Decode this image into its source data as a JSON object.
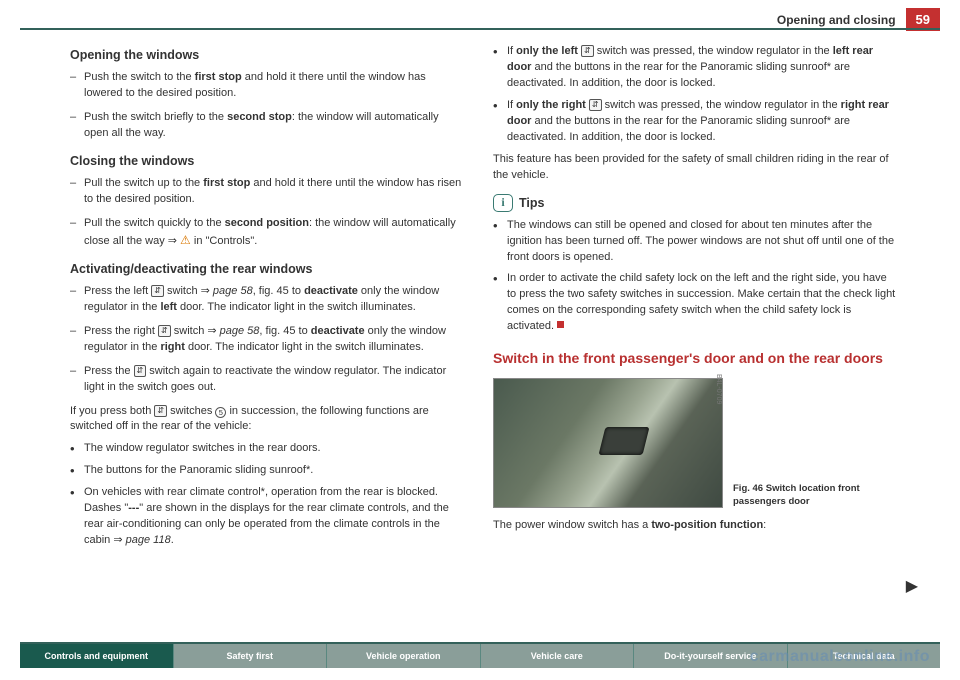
{
  "header": {
    "title": "Opening and closing",
    "pageNum": "59"
  },
  "left": {
    "h1": "Opening the windows",
    "open1": "Push the switch to the <b>first stop</b> and hold it there until the window has lowered to the desired position.",
    "open2": "Push the switch briefly to the <b>second stop</b>: the window will automatically open all the way.",
    "h2": "Closing the windows",
    "close1": "Pull the switch up to the <b>first stop</b> and hold it there until the window has risen to the desired position.",
    "close2": "Pull the switch quickly to the <b>second position</b>: the window will automatically close all the way ⇒ <span class='warn'>⚠</span> in \"Controls\".",
    "h3": "Activating/deactivating the rear windows",
    "act1": "Press the left <span class='inline-icon'>⇵</span> switch ⇒ <i>page 58</i>, fig. 45 to <b>deactivate</b> only the window regulator in the <b>left</b> door. The indicator light in the switch illuminates.",
    "act2": "Press the right <span class='inline-icon'>⇵</span> switch ⇒ <i>page 58</i>, fig. 45 to <b>deactivate</b> only the window regulator in the <b>right</b> door. The indicator light in the switch illuminates.",
    "act3": "Press the <span class='inline-icon'>⇵</span> switch again to reactivate the window regulator. The indicator light in the switch goes out.",
    "note1": "If you press both <span class='inline-icon'>⇵</span> switches <span class='circle-icon'>5</span> in succession, the following functions are switched off in the rear of the vehicle:",
    "b1": "The window regulator switches in the rear doors.",
    "b2": "The buttons for the Panoramic sliding sunroof*.",
    "b3": "On vehicles with rear climate control*, operation from the rear is blocked. Dashes \"<b>---</b>\" are shown in the displays for the rear climate controls, and the rear air-conditioning can only be operated from the climate controls in the cabin ⇒ <i>page 118</i>."
  },
  "right": {
    "r1": "If <b>only the left</b> <span class='inline-icon'>⇵</span> switch was pressed, the window regulator in the <b>left rear door</b> and the buttons in the rear for the Panoramic sliding sunroof* are deactivated. In addition, the door is locked.",
    "r2": "If <b>only the right</b> <span class='inline-icon'>⇵</span> switch was pressed, the window regulator in the <b>right rear door</b> and the buttons in the rear for the Panoramic sliding sunroof* are deactivated. In addition, the door is locked.",
    "r3": "This feature has been provided for the safety of small children riding in the rear of the vehicle.",
    "tipsLabel": "Tips",
    "tip1": "The windows can still be opened and closed for about ten minutes after the ignition has been turned off. The power windows are not shut off until one of the front doors is opened.",
    "tip2": "In order to activate the child safety lock on the left and the right side, you have to press the two safety switches in succession. Make certain that the check light comes on the corresponding safety switch when the child safety lock is activated.",
    "sectionTitle": "Switch in the front passenger's door and on the rear doors",
    "figSide": "B4L-0709",
    "figCaption": "Fig. 46   Switch location front passengers door",
    "footer": "The power window switch has a <b>two-position function</b>:"
  },
  "nav": {
    "n1": "Controls and equipment",
    "n2": "Safety first",
    "n3": "Vehicle operation",
    "n4": "Vehicle care",
    "n5": "Do-it-yourself service",
    "n6": "Technical data"
  },
  "watermark": "carmanualsonline.info"
}
